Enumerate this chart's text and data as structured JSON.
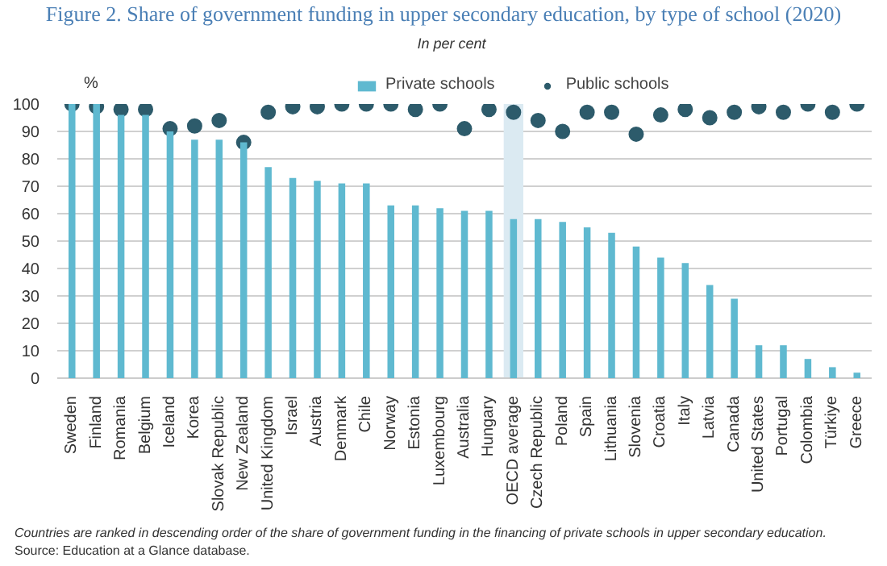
{
  "chart_data": {
    "type": "bar",
    "title": "Figure 2. Share of government funding in upper secondary education, by type of school (2020)",
    "subtitle": "In per cent",
    "ylabel": "%",
    "categories": [
      "Sweden",
      "Finland",
      "Romania",
      "Belgium",
      "Iceland",
      "Korea",
      "Slovak Republic",
      "New Zealand",
      "United Kingdom",
      "Israel",
      "Austria",
      "Denmark",
      "Chile",
      "Norway",
      "Estonia",
      "Luxembourg",
      "Australia",
      "Hungary",
      "OECD average",
      "Czech Republic",
      "Poland",
      "Spain",
      "Lithuania",
      "Slovenia",
      "Croatia",
      "Italy",
      "Latvia",
      "Canada",
      "United States",
      "Portugal",
      "Colombia",
      "Türkiye",
      "Greece"
    ],
    "series": [
      {
        "name": "Private schools",
        "color": "#5fb9d0",
        "values": [
          100,
          100,
          96,
          96,
          90,
          87,
          87,
          86,
          77,
          73,
          72,
          71,
          71,
          63,
          63,
          62,
          61,
          61,
          58,
          58,
          57,
          55,
          53,
          48,
          44,
          42,
          34,
          29,
          12,
          12,
          7,
          4,
          2
        ]
      },
      {
        "name": "Public schools",
        "type": "scatter",
        "color": "#2d5b6b",
        "values": [
          100,
          99,
          98,
          98,
          91,
          92,
          94,
          86,
          97,
          99,
          99,
          100,
          100,
          100,
          98,
          100,
          91,
          98,
          97,
          94,
          90,
          97,
          97,
          89,
          96,
          98,
          95,
          97,
          99,
          97,
          100,
          97,
          100
        ]
      }
    ],
    "ylim": [
      0,
      100
    ],
    "yticks": [
      0,
      10,
      20,
      30,
      40,
      50,
      60,
      70,
      80,
      90,
      100
    ],
    "grid": "y",
    "legend": "top",
    "marker": "circle",
    "bands": [
      {
        "axis": "x",
        "from": "OECD average",
        "to": "OECD average",
        "color": "#dbeaf2"
      }
    ],
    "annotations": [
      "Countries are ranked in descending order of the share of government funding in the financing of private schools in upper secondary education.",
      "Source: Education at a Glance database."
    ]
  }
}
